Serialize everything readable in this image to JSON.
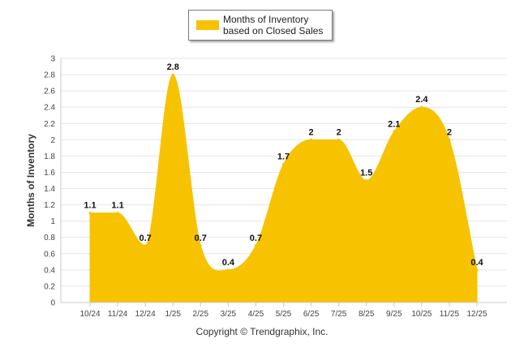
{
  "chart_data": {
    "type": "area",
    "title": "",
    "xlabel": "",
    "ylabel": "Months of Inventory",
    "categories": [
      "10/24",
      "11/24",
      "12/24",
      "1/25",
      "2/25",
      "3/25",
      "4/25",
      "5/25",
      "6/25",
      "7/25",
      "8/25",
      "9/25",
      "10/25",
      "11/25",
      "12/25"
    ],
    "series": [
      {
        "name": "Months of Inventory based on Closed Sales",
        "values": [
          1.1,
          1.1,
          0.7,
          2.8,
          0.7,
          0.4,
          0.7,
          1.7,
          2,
          2,
          1.5,
          2.1,
          2.4,
          2,
          0.4
        ],
        "data_labels": [
          "1.1",
          "1.1",
          "0.7",
          "2.8",
          "0.7",
          "0.4",
          "0.7",
          "1.7",
          "2",
          "2",
          "1.5",
          "2.1",
          "2.4",
          "2",
          "0.4"
        ],
        "color": "#F7C200"
      }
    ],
    "ylim": [
      0,
      3
    ],
    "yticks": [
      "0",
      "0.2",
      "0.4",
      "0.6",
      "0.8",
      "1",
      "1.2",
      "1.4",
      "1.6",
      "1.8",
      "2",
      "2.2",
      "2.4",
      "2.6",
      "2.8",
      "3"
    ],
    "grid": true,
    "legend_position": "top-center"
  },
  "legend": {
    "label": "Months of Inventory based on Closed Sales"
  },
  "footer": {
    "copyright": "Copyright © Trendgraphix, Inc."
  }
}
